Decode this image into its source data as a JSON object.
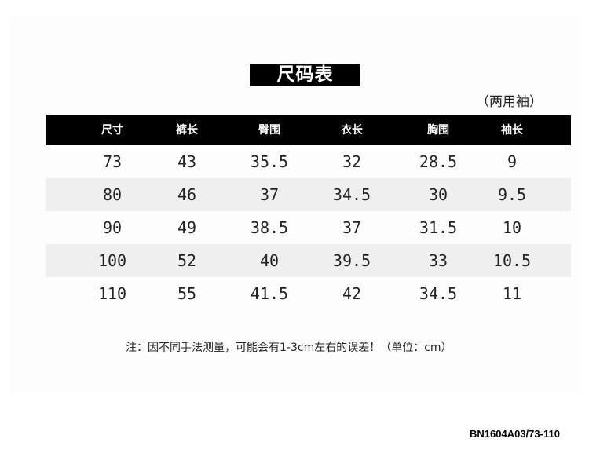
{
  "title": "尺码表",
  "subtitle": "（两用袖）",
  "table": {
    "headers": [
      "尺寸",
      "裤长",
      "臀围",
      "衣长",
      "胸围",
      "袖长"
    ],
    "rows": [
      [
        "73",
        "43",
        "35.5",
        "32",
        "28.5",
        "9"
      ],
      [
        "80",
        "46",
        "37",
        "34.5",
        "30",
        "9.5"
      ],
      [
        "90",
        "49",
        "38.5",
        "37",
        "31.5",
        "10"
      ],
      [
        "100",
        "52",
        "40",
        "39.5",
        "33",
        "10.5"
      ],
      [
        "110",
        "55",
        "41.5",
        "42",
        "34.5",
        "11"
      ]
    ]
  },
  "note": "注：因不同手法测量，可能会有1-3cm左右的误差！（单位：cm）",
  "product_code": "BN1604A03/73-110"
}
